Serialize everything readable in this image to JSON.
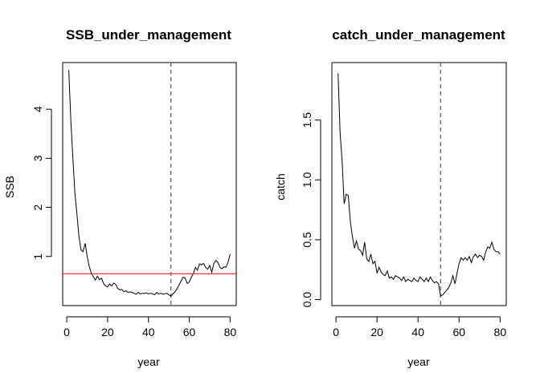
{
  "chart_data": [
    {
      "type": "line",
      "title": "SSB_under_management",
      "xlabel": "year",
      "ylabel": "SSB",
      "xlim": [
        -2,
        83
      ],
      "ylim": [
        0.0,
        4.95
      ],
      "xticks": [
        0,
        20,
        40,
        60,
        80
      ],
      "yticks": [
        1,
        2,
        3,
        4
      ],
      "x_tick_labels": [
        "0",
        "20",
        "40",
        "60",
        "80"
      ],
      "y_tick_labels": [
        "1",
        "2",
        "3",
        "4"
      ],
      "grid": false,
      "line_color": "#000000",
      "vline": {
        "x": 51,
        "style": "dashed",
        "color": "#555555"
      },
      "hline": {
        "y": 0.65,
        "color": "#ff0000"
      },
      "series": [
        {
          "x": [
            1,
            2,
            3,
            4,
            5,
            6,
            7,
            8,
            9,
            10,
            11,
            12,
            13,
            14,
            15,
            16,
            17,
            18,
            19,
            20,
            21,
            22,
            23,
            24,
            25,
            26,
            27,
            28,
            29,
            30,
            31,
            32,
            33,
            34,
            35,
            36,
            37,
            38,
            39,
            40,
            41,
            42,
            43,
            44,
            45,
            46,
            47,
            48,
            49,
            50,
            51,
            52,
            53,
            54,
            55,
            56,
            57,
            58,
            59,
            60,
            61,
            62,
            63,
            64,
            65,
            66,
            67,
            68,
            69,
            70,
            71,
            72,
            73,
            74,
            75,
            76,
            77,
            78,
            79,
            80
          ],
          "y": [
            4.8,
            3.75,
            3.0,
            2.3,
            1.85,
            1.4,
            1.13,
            1.1,
            1.27,
            1.0,
            0.8,
            0.66,
            0.59,
            0.52,
            0.6,
            0.53,
            0.56,
            0.45,
            0.4,
            0.38,
            0.44,
            0.4,
            0.46,
            0.43,
            0.35,
            0.32,
            0.33,
            0.28,
            0.3,
            0.27,
            0.28,
            0.27,
            0.25,
            0.23,
            0.27,
            0.24,
            0.25,
            0.25,
            0.26,
            0.24,
            0.25,
            0.24,
            0.22,
            0.27,
            0.24,
            0.25,
            0.23,
            0.24,
            0.25,
            0.22,
            0.19,
            0.24,
            0.28,
            0.34,
            0.42,
            0.5,
            0.58,
            0.56,
            0.45,
            0.48,
            0.58,
            0.65,
            0.78,
            0.72,
            0.85,
            0.83,
            0.86,
            0.78,
            0.74,
            0.82,
            0.68,
            0.85,
            0.92,
            0.88,
            0.78,
            0.75,
            0.79,
            0.78,
            0.88,
            1.05
          ]
        }
      ]
    },
    {
      "type": "line",
      "title": "catch_under_management",
      "xlabel": "year",
      "ylabel": "catch",
      "xlim": [
        -2,
        83
      ],
      "ylim": [
        -0.05,
        1.98
      ],
      "xticks": [
        0,
        20,
        40,
        60,
        80
      ],
      "yticks": [
        0.0,
        0.5,
        1.0,
        1.5
      ],
      "x_tick_labels": [
        "0",
        "20",
        "40",
        "60",
        "80"
      ],
      "y_tick_labels": [
        "0.0",
        "0.5",
        "1.0",
        "1.5"
      ],
      "grid": false,
      "line_color": "#000000",
      "vline": {
        "x": 51,
        "style": "dashed",
        "color": "#555555"
      },
      "series": [
        {
          "x": [
            1,
            2,
            3,
            4,
            5,
            6,
            7,
            8,
            9,
            10,
            11,
            12,
            13,
            14,
            15,
            16,
            17,
            18,
            19,
            20,
            21,
            22,
            23,
            24,
            25,
            26,
            27,
            28,
            29,
            30,
            31,
            32,
            33,
            34,
            35,
            36,
            37,
            38,
            39,
            40,
            41,
            42,
            43,
            44,
            45,
            46,
            47,
            48,
            49,
            50,
            51,
            52,
            53,
            54,
            55,
            56,
            57,
            58,
            59,
            60,
            61,
            62,
            63,
            64,
            65,
            66,
            67,
            68,
            69,
            70,
            71,
            72,
            73,
            74,
            75,
            76,
            77,
            78,
            79,
            80
          ],
          "y": [
            1.89,
            1.4,
            1.15,
            0.8,
            0.88,
            0.87,
            0.65,
            0.53,
            0.43,
            0.49,
            0.42,
            0.41,
            0.37,
            0.48,
            0.34,
            0.32,
            0.38,
            0.3,
            0.32,
            0.22,
            0.27,
            0.23,
            0.21,
            0.2,
            0.24,
            0.18,
            0.19,
            0.17,
            0.2,
            0.19,
            0.18,
            0.16,
            0.19,
            0.15,
            0.17,
            0.16,
            0.15,
            0.18,
            0.16,
            0.15,
            0.19,
            0.17,
            0.15,
            0.18,
            0.15,
            0.19,
            0.16,
            0.14,
            0.15,
            0.13,
            0.03,
            0.04,
            0.06,
            0.08,
            0.1,
            0.14,
            0.2,
            0.13,
            0.22,
            0.3,
            0.35,
            0.33,
            0.35,
            0.33,
            0.36,
            0.31,
            0.36,
            0.38,
            0.35,
            0.37,
            0.36,
            0.33,
            0.4,
            0.44,
            0.43,
            0.48,
            0.42,
            0.4,
            0.4,
            0.38
          ]
        }
      ]
    }
  ]
}
